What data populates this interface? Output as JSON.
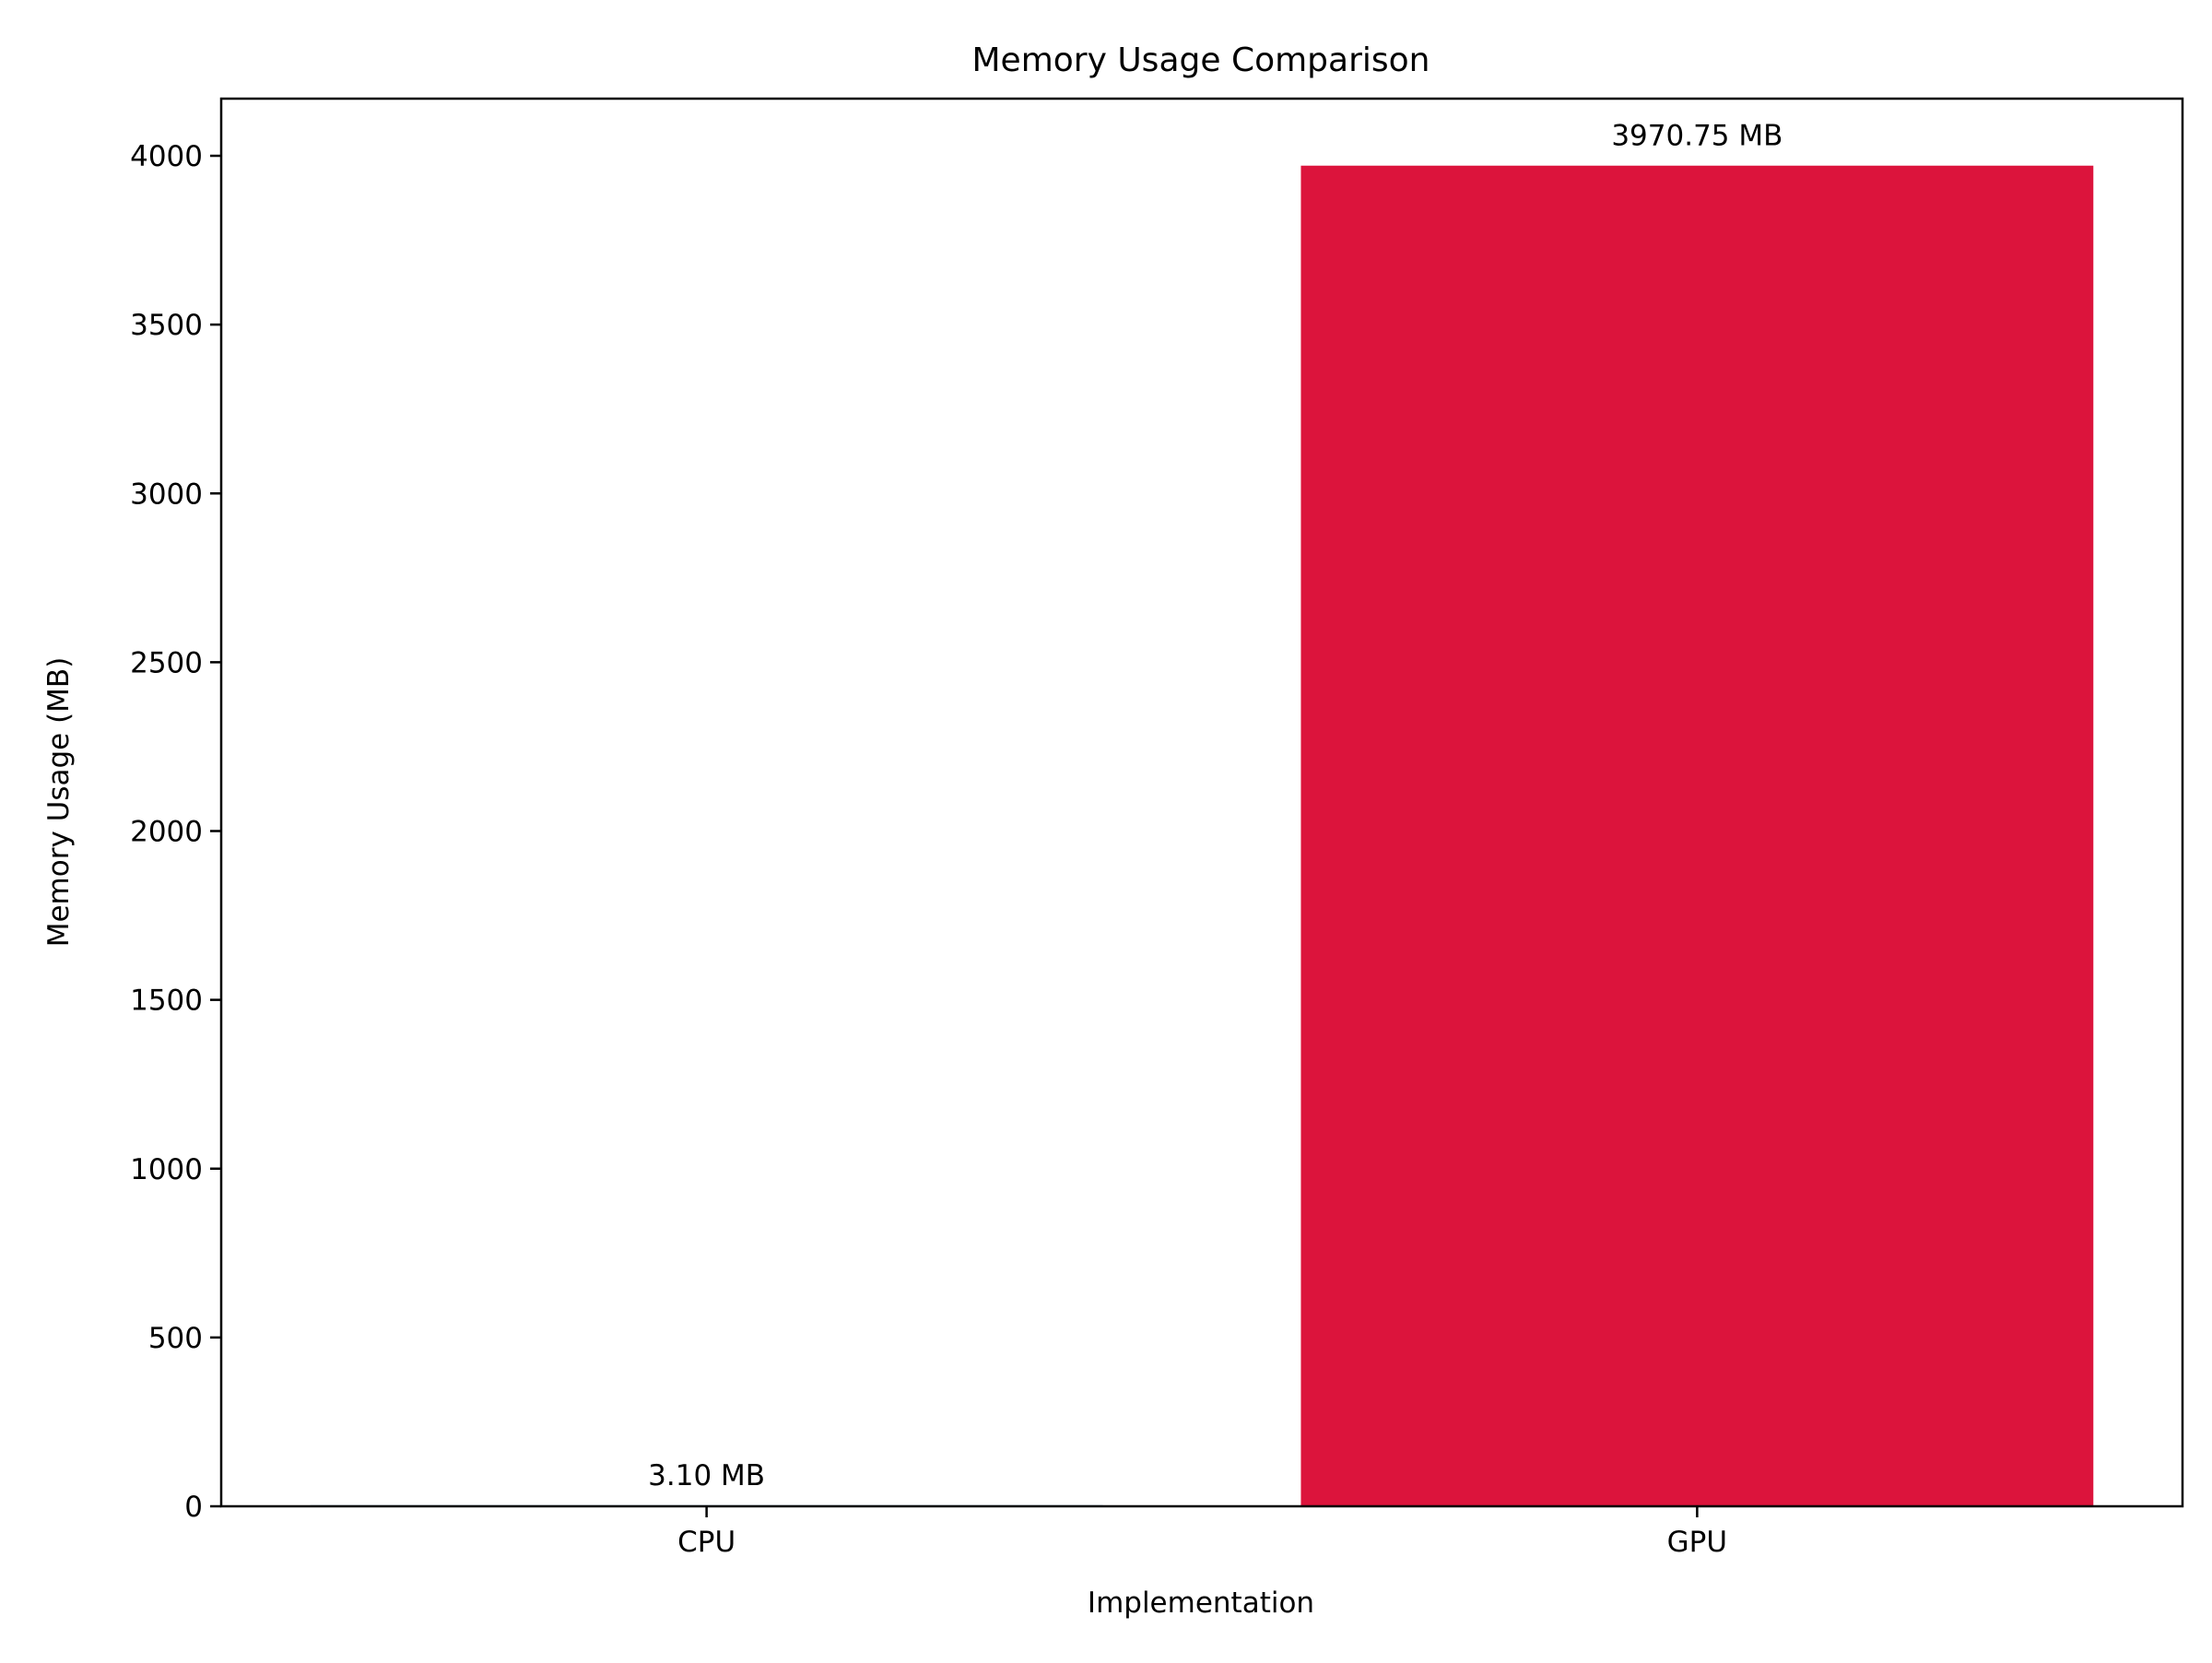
{
  "chart_data": {
    "type": "bar",
    "title": "Memory Usage Comparison",
    "xlabel": "Implementation",
    "ylabel": "Memory Usage (MB)",
    "categories": [
      "CPU",
      "GPU"
    ],
    "values": [
      3.1,
      3970.75
    ],
    "value_labels": [
      "3.10 MB",
      "3970.75 MB"
    ],
    "bar_colors": [
      "#1f77b4",
      "#dc143c"
    ],
    "ylim": [
      0,
      4169.3
    ],
    "yticks": [
      0,
      500,
      1000,
      1500,
      2000,
      2500,
      3000,
      3500,
      4000
    ],
    "grid": false,
    "legend": "none"
  }
}
